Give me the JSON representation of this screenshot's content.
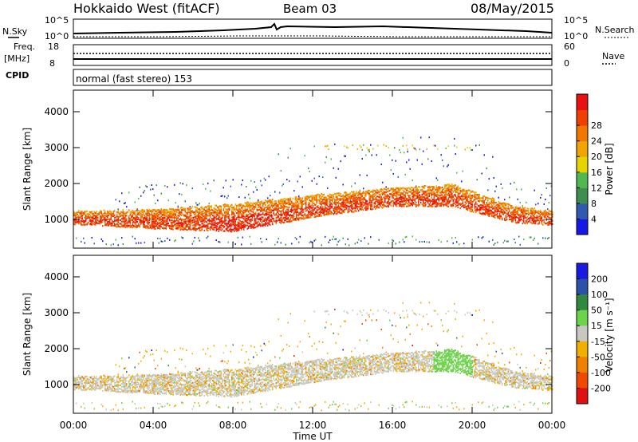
{
  "header": {
    "station": "Hokkaido West (fitACF)",
    "beam": "Beam 03",
    "date": "08/May/2015"
  },
  "top_panel": {
    "nsky_label": "N.Sky",
    "nsky_ticks": [
      "10^5",
      "10^0"
    ],
    "nsearch_label": "N.Search",
    "nsearch_ticks": [
      "10^5",
      "10^0"
    ],
    "freq_label": "Freq.",
    "freq_unit": "[MHz]",
    "freq_ticks": [
      "18",
      "8"
    ],
    "nave_label": "Nave",
    "nave_ticks": [
      "60",
      "0"
    ],
    "cpid_label": "CPID",
    "mode_text": "normal (fast stereo) 153"
  },
  "chart_data": [
    {
      "type": "heatmap",
      "name": "power-panel",
      "xlabel": "",
      "ylabel": "Slant Range [km]",
      "x_ticks": [
        "00:00",
        "04:00",
        "08:00",
        "12:00",
        "16:00",
        "20:00",
        "00:00"
      ],
      "y_ticks": [
        1000,
        2000,
        3000,
        4000
      ],
      "ylim": [
        200,
        4600
      ],
      "xlim_hours": [
        0,
        24
      ],
      "colorbar": {
        "label": "Power [dB]",
        "ticks": [
          "4",
          "8",
          "12",
          "16",
          "20",
          "24",
          "28"
        ],
        "colors": [
          "#1717e8",
          "#2f5ab0",
          "#3d8f50",
          "#4fb84f",
          "#e6d400",
          "#f0a500",
          "#f07800",
          "#f04000",
          "#e81010"
        ]
      },
      "scatter_bands_km": {
        "main_echo_lower_edge": [
          [
            0,
            900
          ],
          [
            4,
            780
          ],
          [
            8,
            700
          ],
          [
            10,
            900
          ],
          [
            12,
            1100
          ],
          [
            16,
            1400
          ],
          [
            19,
            1400
          ],
          [
            22,
            950
          ],
          [
            24,
            880
          ]
        ],
        "main_echo_upper_edge": [
          [
            0,
            1250
          ],
          [
            4,
            1300
          ],
          [
            8,
            1450
          ],
          [
            12,
            1700
          ],
          [
            16,
            1900
          ],
          [
            19,
            2000
          ],
          [
            22,
            1400
          ],
          [
            24,
            1250
          ]
        ],
        "peak_power_region_hours": [
          7,
          10
        ]
      }
    },
    {
      "type": "heatmap",
      "name": "velocity-panel",
      "xlabel": "Time UT",
      "ylabel": "Slant Range [km]",
      "x_ticks": [
        "00:00",
        "04:00",
        "08:00",
        "12:00",
        "16:00",
        "20:00",
        "00:00"
      ],
      "y_ticks": [
        1000,
        2000,
        3000,
        4000
      ],
      "ylim": [
        200,
        4600
      ],
      "xlim_hours": [
        0,
        24
      ],
      "colorbar": {
        "label": "Velocity [m s⁻¹]",
        "ticks": [
          "200",
          "100",
          "50",
          "15",
          "-15",
          "-50",
          "-100",
          "-200"
        ],
        "colors": [
          "#1a1ae0",
          "#2a52a8",
          "#2f8a3f",
          "#6cd44a",
          "#c8c8c0",
          "#f0b000",
          "#f08000",
          "#f04a00",
          "#e01010"
        ]
      }
    }
  ]
}
